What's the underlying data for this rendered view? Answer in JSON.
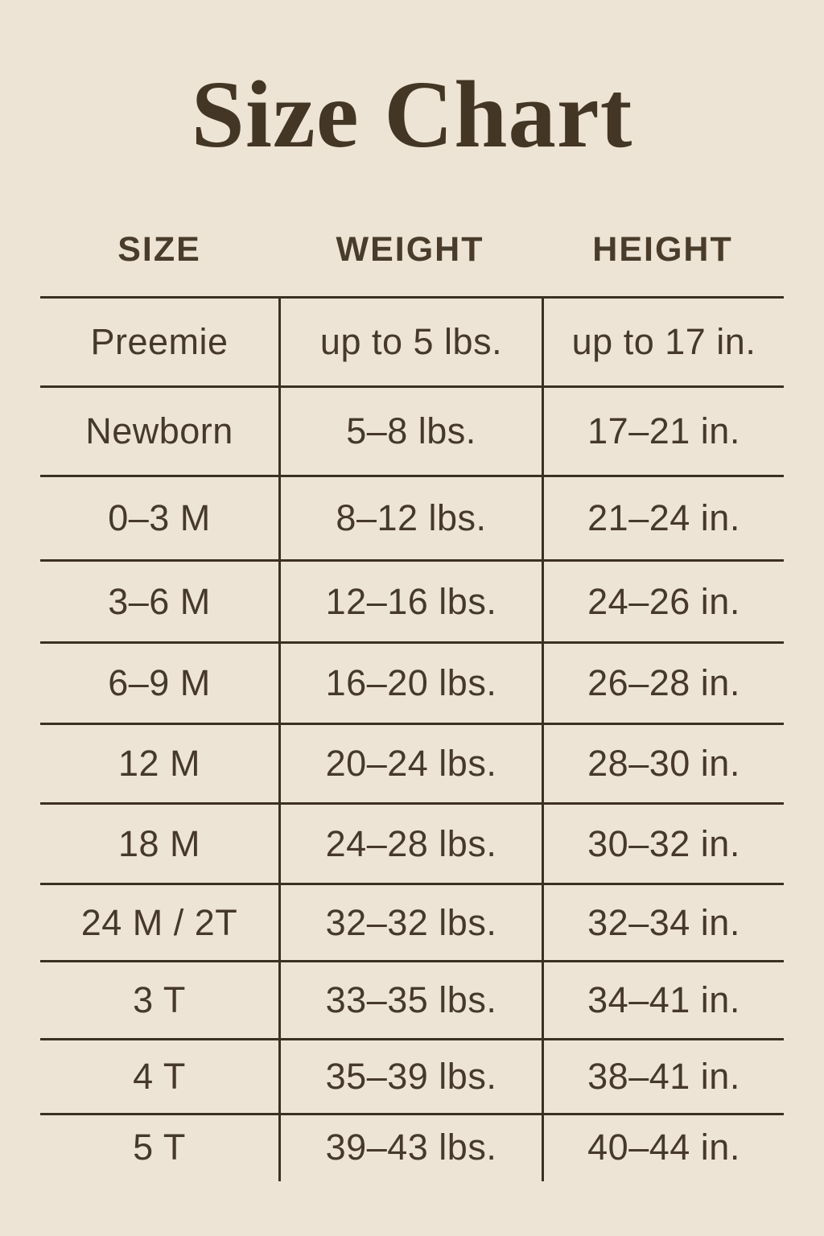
{
  "colors": {
    "background": "#ede4d6",
    "text": "#46392b",
    "rule_lines": "#3c3022",
    "title": "#443624"
  },
  "chart_data": {
    "type": "table",
    "title": "Size Chart",
    "columns": [
      "SIZE",
      "WEIGHT",
      "HEIGHT"
    ],
    "rows": [
      [
        "Preemie",
        "up to 5 lbs.",
        "up to 17 in."
      ],
      [
        "Newborn",
        "5–8 lbs.",
        "17–21 in."
      ],
      [
        "0–3 M",
        "8–12 lbs.",
        "21–24 in."
      ],
      [
        "3–6 M",
        "12–16 lbs.",
        "24–26 in."
      ],
      [
        "6–9 M",
        "16–20 lbs.",
        "26–28 in."
      ],
      [
        "12 M",
        "20–24 lbs.",
        "28–30 in."
      ],
      [
        "18 M",
        "24–28 lbs.",
        "30–32 in."
      ],
      [
        "24 M / 2T",
        "32–32 lbs.",
        "32–34 in."
      ],
      [
        "3 T",
        "33–35 lbs.",
        "34–41 in."
      ],
      [
        "4 T",
        "35–39 lbs.",
        "38–41 in."
      ],
      [
        "5 T",
        "39–43 lbs.",
        "40–44 in."
      ]
    ]
  }
}
